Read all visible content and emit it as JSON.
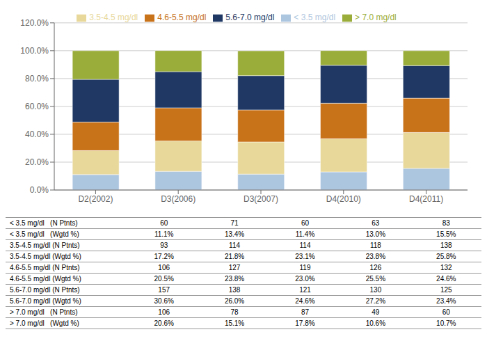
{
  "chart_data": {
    "type": "bar",
    "stacked": true,
    "grid": true,
    "legend": "top",
    "categories": [
      "D2(2002)",
      "D3(2006)",
      "D3(2007)",
      "D4(2010)",
      "D4(2011)"
    ],
    "series": [
      {
        "name": "< 3.5 mg/dl",
        "color": "#adc6e0",
        "values": [
          11.1,
          13.4,
          11.4,
          13.0,
          15.5
        ]
      },
      {
        "name": "3.5-4.5 mg/dl",
        "color": "#e8d89a",
        "values": [
          17.2,
          21.8,
          23.1,
          23.8,
          25.8
        ]
      },
      {
        "name": "4.6-5.5 mg/dl",
        "color": "#c8721a",
        "values": [
          20.5,
          23.8,
          23.0,
          25.5,
          24.6
        ]
      },
      {
        "name": "5.6-7.0 mg/dl",
        "color": "#1f3864",
        "values": [
          30.6,
          26.0,
          24.6,
          27.2,
          23.4
        ]
      },
      {
        "name": "> 7.0 mg/dl",
        "color": "#9aad3a",
        "values": [
          20.6,
          15.1,
          17.8,
          10.6,
          10.7
        ]
      }
    ],
    "ylim": [
      0,
      120
    ],
    "yticks": [
      {
        "value": 0,
        "label": "0.0%"
      },
      {
        "value": 20,
        "label": "20.0%"
      },
      {
        "value": 40,
        "label": "40.0%"
      },
      {
        "value": 60,
        "label": "60.0%"
      },
      {
        "value": 80,
        "label": "80.0%"
      },
      {
        "value": 100,
        "label": "100.0%"
      },
      {
        "value": 120,
        "label": "120.0%"
      }
    ],
    "table_rows": [
      {
        "label": "< 3.5 mg/dl   (N Ptnts)",
        "values": [
          "60",
          "71",
          "60",
          "63",
          "83"
        ]
      },
      {
        "label": "< 3.5 mg/dl   (Wgtd %)",
        "values": [
          "11.1%",
          "13.4%",
          "11.4%",
          "13.0%",
          "15.5%"
        ]
      },
      {
        "label": "3.5-4.5 mg/dl (N Ptnts)",
        "values": [
          "93",
          "114",
          "114",
          "118",
          "138"
        ]
      },
      {
        "label": "3.5-4.5 mg/dl (Wgtd %)",
        "values": [
          "17.2%",
          "21.8%",
          "23.1%",
          "23.8%",
          "25.8%"
        ]
      },
      {
        "label": "4.6-5.5 mg/dl (N Ptnts)",
        "values": [
          "106",
          "127",
          "119",
          "126",
          "132"
        ]
      },
      {
        "label": "4.6-5.5 mg/dl (Wgtd %)",
        "values": [
          "20.5%",
          "23.8%",
          "23.0%",
          "25.5%",
          "24.6%"
        ]
      },
      {
        "label": "5.6-7.0 mg/dl (N Ptnts)",
        "values": [
          "157",
          "138",
          "121",
          "130",
          "125"
        ]
      },
      {
        "label": "5.6-7.0 mg/dl (Wgtd %)",
        "values": [
          "30.6%",
          "26.0%",
          "24.6%",
          "27.2%",
          "23.4%"
        ]
      },
      {
        "label": "> 7.0 mg/dl   (N Ptnts)",
        "values": [
          "106",
          "78",
          "87",
          "49",
          "60"
        ]
      },
      {
        "label": "> 7.0 mg/dl   (Wgtd %)",
        "values": [
          "20.6%",
          "15.1%",
          "17.8%",
          "10.6%",
          "10.7%"
        ]
      }
    ]
  }
}
